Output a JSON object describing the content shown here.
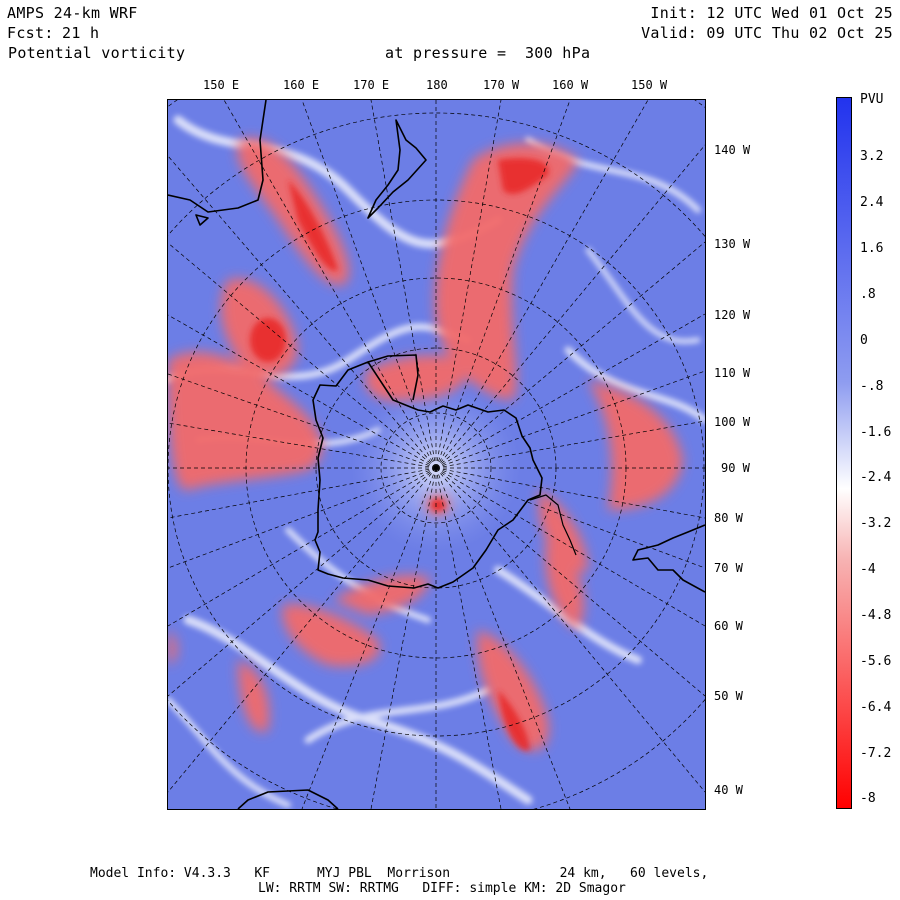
{
  "header": {
    "model": "AMPS 24-km WRF",
    "fcst_label": "Fcst:",
    "fcst_hours": "21 h",
    "variable": "Potential vorticity",
    "level": "at pressure =  300 hPa",
    "init": "Init: 12 UTC Wed 01 Oct 25",
    "valid": "Valid: 09 UTC Thu 02 Oct 25"
  },
  "map": {
    "projection": "polar stereographic, south pole",
    "lon_labels_top": [
      "150 E",
      "160 E",
      "170 E",
      "180",
      "170 W",
      "160 W",
      "150 W"
    ],
    "lon_labels_right": [
      "140 W",
      "130 W",
      "120 W",
      "110 W",
      "100 W",
      "90 W",
      "80 W",
      "70 W",
      "60 W",
      "50 W",
      "40 W"
    ]
  },
  "colorbar": {
    "unit": "PVU",
    "ticks": [
      "3.2",
      "2.4",
      "1.6",
      ".8",
      "0",
      "-.8",
      "-1.6",
      "-2.4",
      "-3.2",
      "-4",
      "-4.8",
      "-5.6",
      "-6.4",
      "-7.2",
      "-8"
    ],
    "colors": {
      "high": "#2233ee",
      "mid": "#ffffff",
      "low": "#ff0000"
    }
  },
  "footer": {
    "line1": "Model Info: V4.3.3   KF      MYJ PBL  Morrison              24 km,   60 levels,",
    "line2": "LW: RRTM SW: RRTMG   DIFF: simple KM: 2D Smagor"
  }
}
